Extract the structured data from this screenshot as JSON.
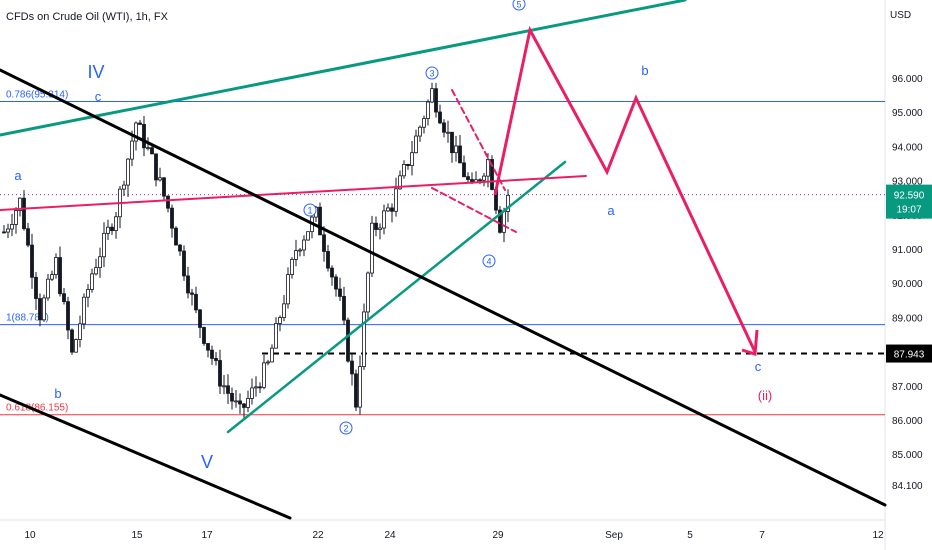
{
  "chart_data": {
    "type": "candlestick",
    "title": "CFDs on Crude Oil (WTI), 1h, FX",
    "currency": "USD",
    "y_ticks": [
      84.1,
      85.0,
      86.0,
      87.0,
      88.0,
      89.0,
      90.0,
      91.0,
      92.0,
      93.0,
      94.0,
      95.0,
      96.0
    ],
    "y_tick_labels": [
      "84.100",
      "85.000",
      "86.000",
      "87.000",
      "88.000",
      "89.000",
      "90.000",
      "91.000",
      "92.000",
      "93.000",
      "94.000",
      "95.000",
      "96.000"
    ],
    "x_tick_labels": [
      "10",
      "15",
      "17",
      "22",
      "24",
      "29",
      "Sep",
      "5",
      "7",
      "12"
    ],
    "current_price": {
      "value": 92.59,
      "label": "92.590",
      "countdown": "19:07"
    },
    "target_level": {
      "value": 87.943,
      "label": "87.943"
    },
    "fib_levels": [
      {
        "label": "0.786(95.314)",
        "value": 95.314,
        "color": "#2962ff"
      },
      {
        "label": "1(88.787)",
        "value": 88.787,
        "color": "#2962ff"
      },
      {
        "label": "0.618(86.155)",
        "value": 86.155,
        "color": "#f23645"
      }
    ],
    "wave_labels": [
      "IV",
      "c",
      "a",
      "b",
      "V",
      "1",
      "2",
      "3",
      "4",
      "5",
      "a",
      "b",
      "c",
      "(ii)"
    ],
    "price_path": [
      {
        "bar": 0,
        "price": 91.5
      },
      {
        "bar": 4,
        "price": 92.4
      },
      {
        "bar": 9,
        "price": 89.1
      },
      {
        "bar": 13,
        "price": 90.6
      },
      {
        "bar": 17,
        "price": 87.9
      },
      {
        "bar": 22,
        "price": 90.3
      },
      {
        "bar": 28,
        "price": 92.1
      },
      {
        "bar": 33,
        "price": 94.7
      },
      {
        "bar": 37,
        "price": 93.6
      },
      {
        "bar": 41,
        "price": 92.2
      },
      {
        "bar": 48,
        "price": 89.1
      },
      {
        "bar": 54,
        "price": 87.2
      },
      {
        "bar": 59,
        "price": 86.2
      },
      {
        "bar": 66,
        "price": 87.6
      },
      {
        "bar": 73,
        "price": 91.0
      },
      {
        "bar": 78,
        "price": 92.0
      },
      {
        "bar": 84,
        "price": 89.4
      },
      {
        "bar": 88,
        "price": 86.5
      },
      {
        "bar": 92,
        "price": 91.5
      },
      {
        "bar": 97,
        "price": 92.3
      },
      {
        "bar": 102,
        "price": 93.9
      },
      {
        "bar": 107,
        "price": 95.6
      },
      {
        "bar": 112,
        "price": 94.0
      },
      {
        "bar": 117,
        "price": 92.7
      },
      {
        "bar": 121,
        "price": 93.6
      },
      {
        "bar": 124,
        "price": 91.7
      },
      {
        "bar": 126,
        "price": 92.59
      }
    ],
    "projection": [
      "5",
      "a",
      "b",
      "c"
    ],
    "colors": {
      "up": "#26a69a",
      "down": "#26a69a",
      "candle": "#131722",
      "projection": "#e91e63",
      "trend_green": "#089981",
      "trend_red": "#e91e63",
      "trend_black": "#000000",
      "fib_blue": "#2962ff",
      "fib_red": "#f23645",
      "label_blue": "#2962ff",
      "label_red": "#e91e63"
    }
  }
}
